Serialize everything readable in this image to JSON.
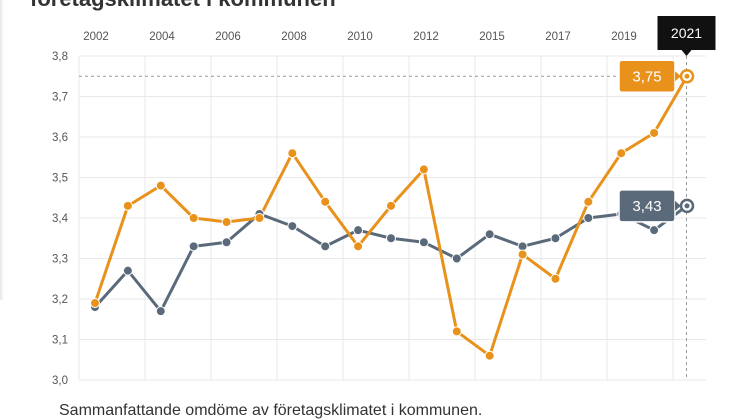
{
  "page": {
    "title_fragment": "företagsklimatet i kommunen",
    "caption": "Sammanfattande omdöme av företagsklimatet i kommunen."
  },
  "chart_data": {
    "type": "line",
    "x": [
      2002,
      2003,
      2004,
      2005,
      2006,
      2007,
      2008,
      2009,
      2010,
      2011,
      2012,
      2013,
      2014,
      2015,
      2016,
      2017,
      2018,
      2019,
      2020,
      2021
    ],
    "x_tick_labels": [
      "2002",
      "2004",
      "2006",
      "2008",
      "2010",
      "2012",
      "2015",
      "2017",
      "2019"
    ],
    "y_tick_labels": [
      "3,0",
      "3,1",
      "3,2",
      "3,3",
      "3,4",
      "3,5",
      "3,6",
      "3,7",
      "3,8"
    ],
    "ylim": [
      3.0,
      3.8
    ],
    "grid": true,
    "series": [
      {
        "color": "#e8921c",
        "values": [
          3.19,
          3.43,
          3.48,
          3.4,
          3.39,
          3.4,
          3.56,
          3.44,
          3.33,
          3.43,
          3.52,
          3.12,
          3.06,
          3.31,
          3.25,
          3.44,
          3.56,
          3.61,
          3.75,
          null
        ],
        "end_label": "3,75"
      },
      {
        "color": "#5b6a7a",
        "values": [
          3.18,
          3.27,
          3.17,
          3.33,
          3.34,
          3.41,
          3.38,
          3.33,
          3.37,
          3.35,
          3.34,
          3.3,
          3.36,
          3.33,
          3.35,
          3.4,
          3.41,
          3.37,
          3.43,
          null
        ],
        "end_label": "3,43"
      }
    ],
    "tooltip_year": "2021"
  }
}
